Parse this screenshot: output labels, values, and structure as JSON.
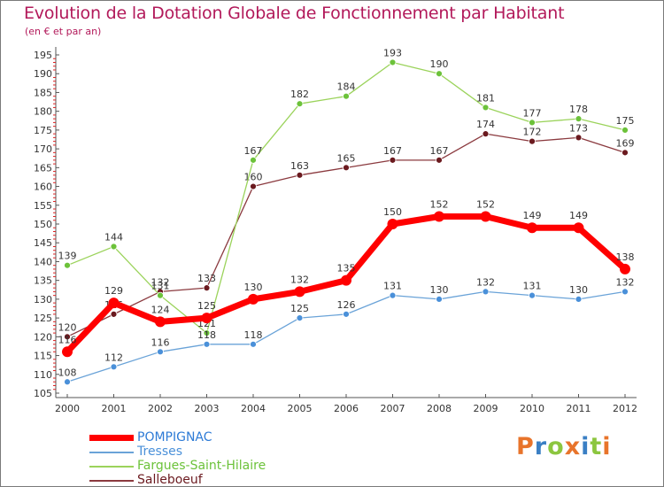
{
  "header": {
    "title": "Evolution de la Dotation Globale de Fonctionnement par Habitant",
    "subtitle": "(en € et par an)"
  },
  "logo": {
    "text": "Proxiti",
    "colors": [
      "#e8742b",
      "#3a7fc4",
      "#8cc63f",
      "#e8742b",
      "#3a7fc4",
      "#8cc63f",
      "#e8742b"
    ]
  },
  "chart_data": {
    "type": "line",
    "title": "Evolution de la Dotation Globale de Fonctionnement par Habitant",
    "subtitle": "(en € et par an)",
    "xlabel": "",
    "ylabel": "",
    "categories": [
      "2000",
      "2001",
      "2002",
      "2003",
      "2004",
      "2005",
      "2006",
      "2007",
      "2008",
      "2009",
      "2010",
      "2011",
      "2012"
    ],
    "ylim": [
      105,
      195
    ],
    "yticks": [
      105,
      110,
      115,
      120,
      125,
      130,
      135,
      140,
      145,
      150,
      155,
      160,
      165,
      170,
      175,
      180,
      185,
      190,
      195
    ],
    "grid": false,
    "legend_position": "bottom-left",
    "series": [
      {
        "name": "Salleboeuf",
        "color": "#6b1a1f",
        "line_color": "#8b3a3f",
        "values": [
          120,
          126,
          132,
          133,
          160,
          163,
          165,
          167,
          167,
          174,
          172,
          173,
          169
        ]
      },
      {
        "name": "Fargues-Saint-Hilaire",
        "color": "#6cc23a",
        "line_color": "#9bd35b",
        "values": [
          139,
          144,
          131,
          121,
          167,
          182,
          184,
          193,
          190,
          181,
          177,
          178,
          175
        ]
      },
      {
        "name": "Tresses",
        "color": "#4a90d9",
        "line_color": "#6aa3d8",
        "values": [
          108,
          112,
          116,
          118,
          118,
          125,
          126,
          131,
          130,
          132,
          131,
          130,
          132
        ]
      },
      {
        "name": "POMPIGNAC",
        "color": "#ff0000",
        "line_color": "#ff0000",
        "values": [
          116,
          129,
          124,
          125,
          130,
          132,
          135,
          150,
          152,
          152,
          149,
          149,
          138
        ]
      }
    ],
    "legend_order": [
      "POMPIGNAC",
      "Tresses",
      "Fargues-Saint-Hilaire",
      "Salleboeuf"
    ]
  }
}
